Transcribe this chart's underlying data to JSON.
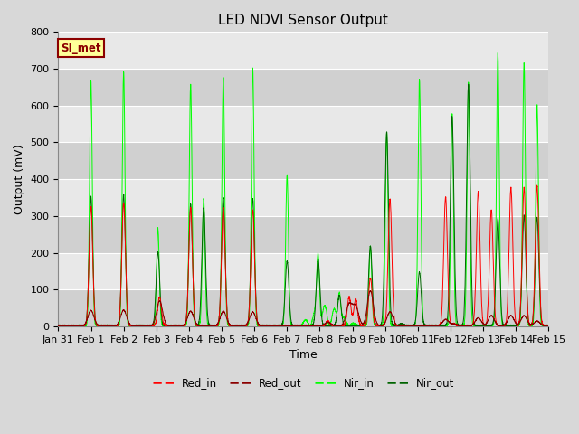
{
  "title": "LED NDVI Sensor Output",
  "xlabel": "Time",
  "ylabel": "Output (mV)",
  "ylim": [
    0,
    800
  ],
  "annotation_text": "SI_met",
  "annotation_facecolor": "#FFFF99",
  "annotation_edgecolor": "#8B0000",
  "annotation_textcolor": "#8B0000",
  "figure_facecolor": "#D8D8D8",
  "axes_facecolor": "#E8E8E8",
  "band_color_dark": "#D0D0D0",
  "band_color_light": "#E8E8E8",
  "legend_entries": [
    "Red_in",
    "Red_out",
    "Nir_in",
    "Nir_out"
  ],
  "legend_colors": [
    "#FF0000",
    "#8B0000",
    "#00FF00",
    "#006400"
  ],
  "grid_color": "#FFFFFF",
  "title_fontsize": 11,
  "tick_fontsize": 8,
  "label_fontsize": 9
}
